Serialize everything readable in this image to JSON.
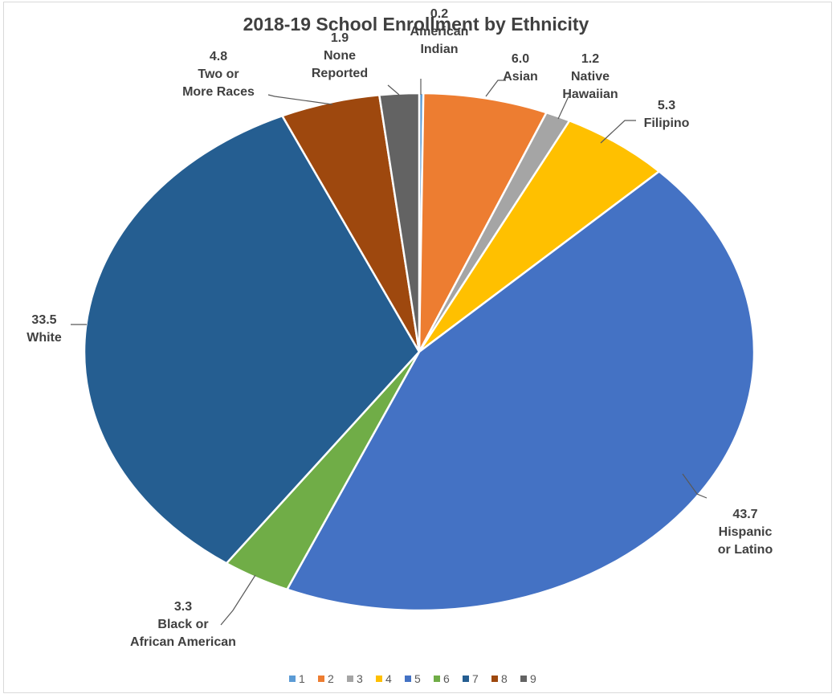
{
  "chart_data": {
    "type": "pie",
    "title": "2018-19 School Enrollment by Ethnicity",
    "slices": [
      {
        "value": 0.2,
        "value_label": "0.2",
        "label": [
          "American",
          "Indian"
        ],
        "color": "#5B9BD5"
      },
      {
        "value": 6.0,
        "value_label": "6.0",
        "label": [
          "Asian"
        ],
        "color": "#ED7D31"
      },
      {
        "value": 1.2,
        "value_label": "1.2",
        "label": [
          "Native",
          "Hawaiian"
        ],
        "color": "#A5A5A5"
      },
      {
        "value": 5.3,
        "value_label": "5.3",
        "label": [
          "Filipino"
        ],
        "color": "#FFC000"
      },
      {
        "value": 43.7,
        "value_label": "43.7",
        "label": [
          "Hispanic",
          "or Latino"
        ],
        "color": "#4472C4"
      },
      {
        "value": 3.3,
        "value_label": "3.3",
        "label": [
          "Black or",
          "African American"
        ],
        "color": "#70AD47"
      },
      {
        "value": 33.5,
        "value_label": "33.5",
        "label": [
          "White"
        ],
        "color": "#255E91"
      },
      {
        "value": 4.8,
        "value_label": "4.8",
        "label": [
          "Two or",
          "More Races"
        ],
        "color": "#9E480E"
      },
      {
        "value": 1.9,
        "value_label": "1.9",
        "label": [
          "None",
          "Reported"
        ],
        "color": "#636363"
      }
    ],
    "legend": {
      "placement": "bottom",
      "entries": [
        "1",
        "2",
        "3",
        "4",
        "5",
        "6",
        "7",
        "8",
        "9"
      ]
    }
  }
}
